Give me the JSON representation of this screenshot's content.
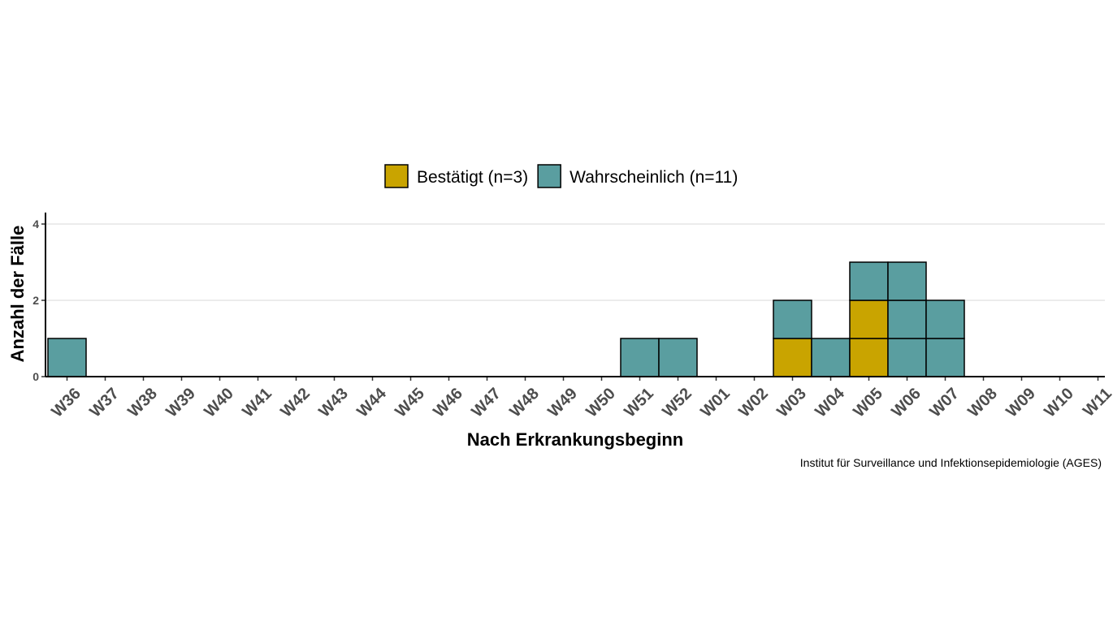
{
  "chart_data": {
    "type": "bar",
    "stacked": true,
    "title": "",
    "xlabel": "Nach Erkrankungsbeginn",
    "ylabel": "Anzahl der Fälle",
    "caption": "Institut für Surveillance und Infektionsepidemiologie (AGES)",
    "ylim": [
      0,
      4.3
    ],
    "yticks": [
      0,
      2,
      4
    ],
    "grid": "horizontal major",
    "legend_position": "top",
    "categories": [
      "W36",
      "W37",
      "W38",
      "W39",
      "W40",
      "W41",
      "W42",
      "W43",
      "W44",
      "W45",
      "W46",
      "W47",
      "W48",
      "W49",
      "W50",
      "W51",
      "W52",
      "W01",
      "W02",
      "W03",
      "W04",
      "W05",
      "W06",
      "W07",
      "W08",
      "W09",
      "W10",
      "W11"
    ],
    "series": [
      {
        "name": "Bestätigt (n=3)",
        "color": "#c9a400",
        "values": [
          0,
          0,
          0,
          0,
          0,
          0,
          0,
          0,
          0,
          0,
          0,
          0,
          0,
          0,
          0,
          0,
          0,
          0,
          0,
          1,
          0,
          2,
          0,
          0,
          0,
          0,
          0,
          0
        ]
      },
      {
        "name": "Wahrscheinlich (n=11)",
        "color": "#5a9ea0",
        "values": [
          1,
          0,
          0,
          0,
          0,
          0,
          0,
          0,
          0,
          0,
          0,
          0,
          0,
          0,
          0,
          1,
          1,
          0,
          0,
          1,
          1,
          1,
          3,
          2,
          0,
          0,
          0,
          0
        ]
      }
    ]
  }
}
